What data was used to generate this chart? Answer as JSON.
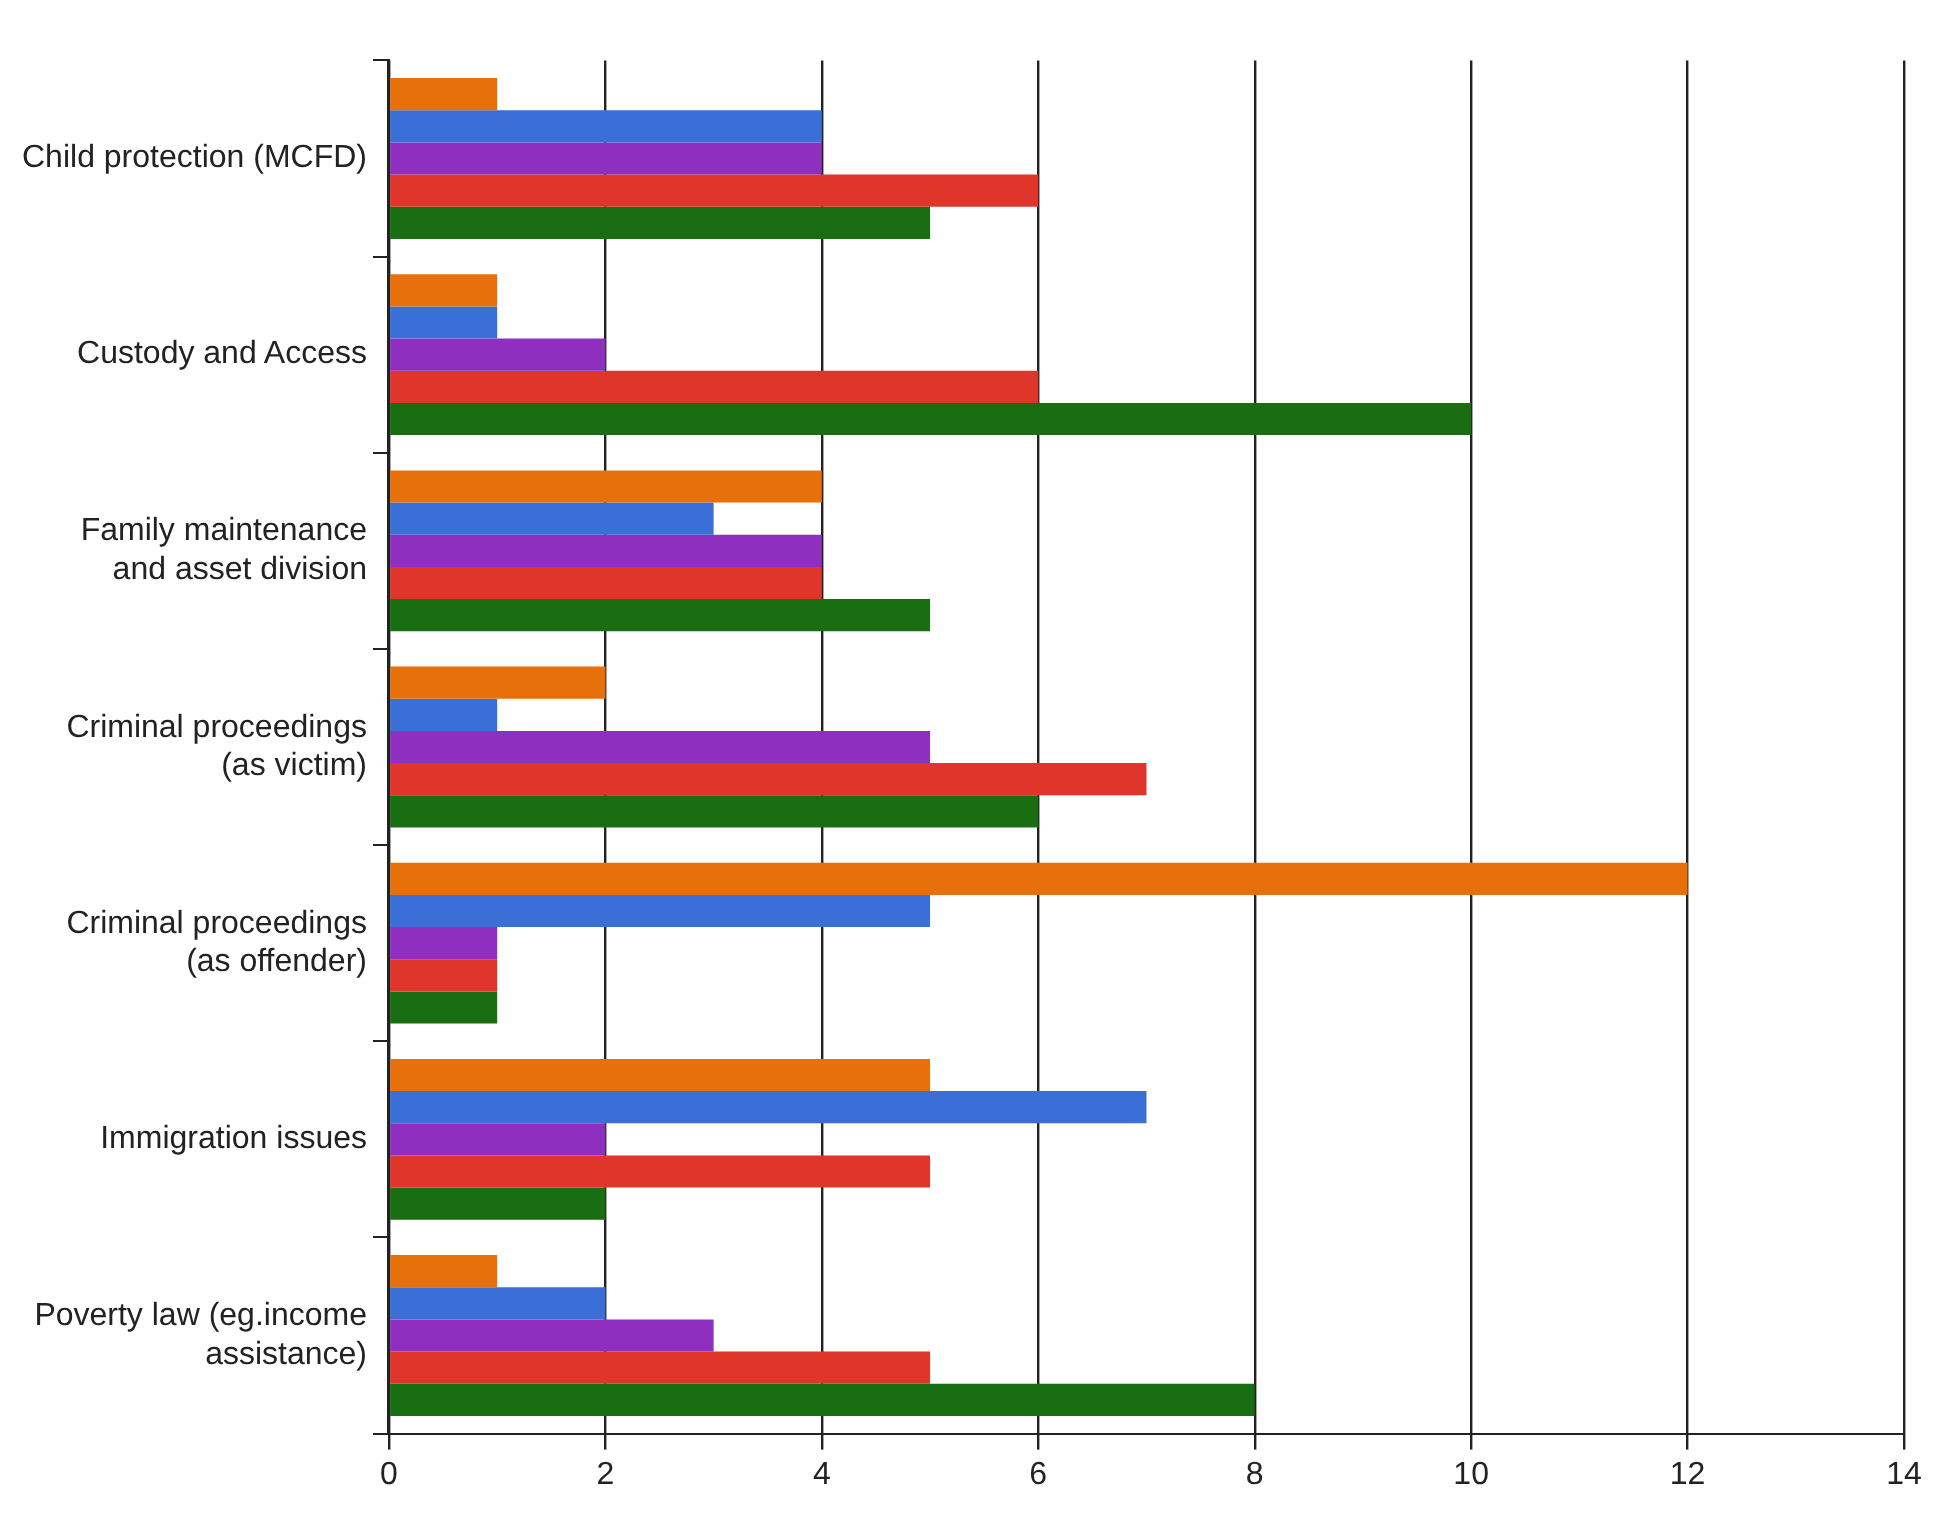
{
  "chart_data": {
    "type": "bar",
    "orientation": "horizontal",
    "categories": [
      "Child protection (MCFD)",
      "Custody and Access",
      "Family maintenance\nand asset division",
      "Criminal proceedings\n(as victim)",
      "Criminal proceedings\n(as offender)",
      "Immigration issues",
      "Poverty law (eg.income\nassistance)"
    ],
    "series": [
      {
        "color": "#e8700a",
        "values": [
          1,
          1,
          4,
          2,
          12,
          5,
          1
        ]
      },
      {
        "color": "#3a6fd8",
        "values": [
          4,
          1,
          3,
          1,
          5,
          7,
          2
        ]
      },
      {
        "color": "#8e2fc0",
        "values": [
          4,
          2,
          4,
          5,
          1,
          2,
          3
        ]
      },
      {
        "color": "#e0352b",
        "values": [
          6,
          6,
          4,
          7,
          1,
          5,
          5
        ]
      },
      {
        "color": "#1a6e12",
        "values": [
          5,
          10,
          5,
          6,
          1,
          2,
          8
        ]
      }
    ],
    "xlim": [
      0,
      14
    ],
    "xticks": [
      0,
      2,
      4,
      6,
      8,
      10,
      12,
      14
    ],
    "grid": "x"
  }
}
